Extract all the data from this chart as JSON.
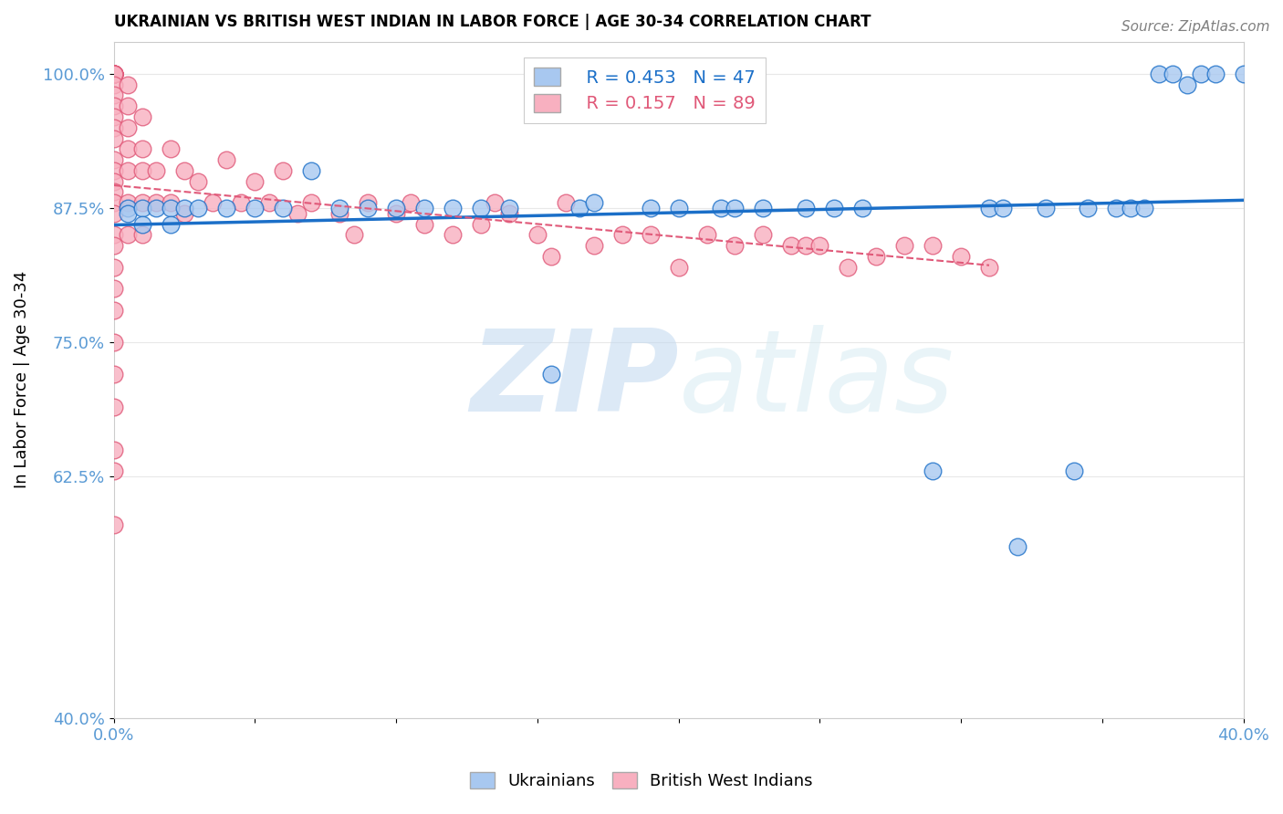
{
  "title": "UKRAINIAN VS BRITISH WEST INDIAN IN LABOR FORCE | AGE 30-34 CORRELATION CHART",
  "source": "Source: ZipAtlas.com",
  "ylabel": "In Labor Force | Age 30-34",
  "xlim": [
    0.0,
    0.4
  ],
  "ylim": [
    0.4,
    1.03
  ],
  "yticks": [
    0.4,
    0.625,
    0.75,
    0.875,
    1.0
  ],
  "ytick_labels": [
    "40.0%",
    "62.5%",
    "75.0%",
    "87.5%",
    "100.0%"
  ],
  "xticks": [
    0.0,
    0.05,
    0.1,
    0.15,
    0.2,
    0.25,
    0.3,
    0.35,
    0.4
  ],
  "xtick_labels": [
    "0.0%",
    "",
    "",
    "",
    "",
    "",
    "",
    "",
    "40.0%"
  ],
  "blue_R": 0.453,
  "blue_N": 47,
  "pink_R": 0.157,
  "pink_N": 89,
  "blue_color": "#A8C8F0",
  "pink_color": "#F8B0C0",
  "blue_line_color": "#1B6FC8",
  "pink_line_color": "#E05878",
  "watermark_zip": "ZIP",
  "watermark_atlas": "atlas",
  "blue_scatter_x": [
    0.005,
    0.005,
    0.01,
    0.01,
    0.015,
    0.02,
    0.02,
    0.025,
    0.03,
    0.04,
    0.05,
    0.06,
    0.07,
    0.08,
    0.09,
    0.1,
    0.11,
    0.12,
    0.13,
    0.14,
    0.155,
    0.165,
    0.17,
    0.19,
    0.2,
    0.215,
    0.22,
    0.23,
    0.245,
    0.255,
    0.265,
    0.29,
    0.31,
    0.315,
    0.32,
    0.33,
    0.34,
    0.345,
    0.355,
    0.36,
    0.365,
    0.37,
    0.375,
    0.38,
    0.385,
    0.39,
    0.4
  ],
  "blue_scatter_y": [
    0.875,
    0.87,
    0.875,
    0.86,
    0.875,
    0.875,
    0.86,
    0.875,
    0.875,
    0.875,
    0.875,
    0.875,
    0.91,
    0.875,
    0.875,
    0.875,
    0.875,
    0.875,
    0.875,
    0.875,
    0.72,
    0.875,
    0.88,
    0.875,
    0.875,
    0.875,
    0.875,
    0.875,
    0.875,
    0.875,
    0.875,
    0.63,
    0.875,
    0.875,
    0.56,
    0.875,
    0.63,
    0.875,
    0.875,
    0.875,
    0.875,
    1.0,
    1.0,
    0.99,
    1.0,
    1.0,
    1.0
  ],
  "pink_scatter_x": [
    0.0,
    0.0,
    0.0,
    0.0,
    0.0,
    0.0,
    0.0,
    0.0,
    0.0,
    0.0,
    0.0,
    0.0,
    0.0,
    0.0,
    0.0,
    0.0,
    0.0,
    0.0,
    0.0,
    0.0,
    0.0,
    0.0,
    0.0,
    0.0,
    0.0,
    0.0,
    0.0,
    0.0,
    0.0,
    0.0,
    0.0,
    0.0,
    0.0,
    0.005,
    0.005,
    0.005,
    0.005,
    0.005,
    0.005,
    0.005,
    0.01,
    0.01,
    0.01,
    0.01,
    0.01,
    0.015,
    0.015,
    0.02,
    0.02,
    0.025,
    0.025,
    0.03,
    0.035,
    0.04,
    0.045,
    0.05,
    0.055,
    0.06,
    0.065,
    0.07,
    0.08,
    0.085,
    0.09,
    0.1,
    0.105,
    0.11,
    0.12,
    0.13,
    0.135,
    0.14,
    0.15,
    0.155,
    0.16,
    0.17,
    0.18,
    0.19,
    0.2,
    0.21,
    0.22,
    0.23,
    0.24,
    0.245,
    0.25,
    0.26,
    0.27,
    0.28,
    0.29,
    0.3,
    0.31
  ],
  "pink_scatter_y": [
    1.0,
    1.0,
    1.0,
    1.0,
    1.0,
    1.0,
    1.0,
    1.0,
    1.0,
    1.0,
    0.99,
    0.98,
    0.97,
    0.96,
    0.95,
    0.94,
    0.92,
    0.91,
    0.9,
    0.89,
    0.88,
    0.87,
    0.85,
    0.84,
    0.82,
    0.8,
    0.78,
    0.75,
    0.72,
    0.69,
    0.65,
    0.63,
    0.58,
    0.99,
    0.97,
    0.95,
    0.93,
    0.91,
    0.88,
    0.85,
    0.96,
    0.93,
    0.91,
    0.88,
    0.85,
    0.91,
    0.88,
    0.93,
    0.88,
    0.91,
    0.87,
    0.9,
    0.88,
    0.92,
    0.88,
    0.9,
    0.88,
    0.91,
    0.87,
    0.88,
    0.87,
    0.85,
    0.88,
    0.87,
    0.88,
    0.86,
    0.85,
    0.86,
    0.88,
    0.87,
    0.85,
    0.83,
    0.88,
    0.84,
    0.85,
    0.85,
    0.82,
    0.85,
    0.84,
    0.85,
    0.84,
    0.84,
    0.84,
    0.82,
    0.83,
    0.84,
    0.84,
    0.83,
    0.82
  ],
  "legend_label_blue": "Ukrainians",
  "legend_label_pink": "British West Indians",
  "tick_color": "#5B9BD5",
  "axis_color": "#CCCCCC",
  "grid_color": "#E8E8E8"
}
